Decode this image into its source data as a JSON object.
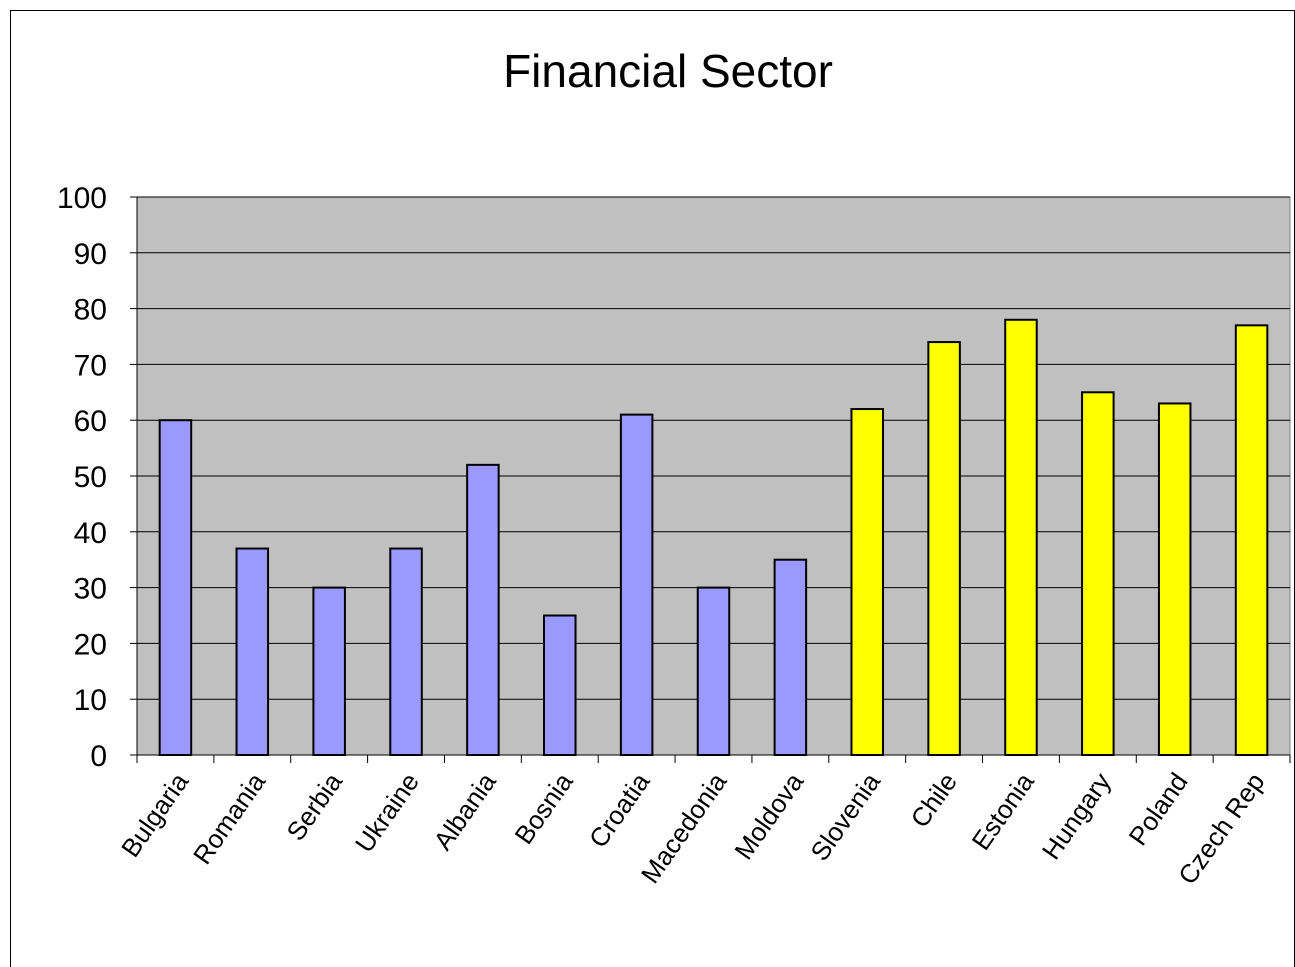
{
  "chart_data": {
    "type": "bar",
    "title": "Financial Sector",
    "xlabel": "",
    "ylabel": "",
    "ylim": [
      0,
      100
    ],
    "yticks": [
      0,
      10,
      20,
      30,
      40,
      50,
      60,
      70,
      80,
      90,
      100
    ],
    "grid": true,
    "legend": "none",
    "categories": [
      "Bulgaria",
      "Romania",
      "Serbia",
      "Ukraine",
      "Albania",
      "Bosnia",
      "Croatia",
      "Macedonia",
      "Moldova",
      "Slovenia",
      "Chile",
      "Estonia",
      "Hungary",
      "Poland",
      "Czech Rep"
    ],
    "values": [
      60,
      37,
      30,
      37,
      52,
      25,
      61,
      30,
      35,
      62,
      74,
      78,
      65,
      63,
      77
    ],
    "bar_colors": [
      "#9999ff",
      "#9999ff",
      "#9999ff",
      "#9999ff",
      "#9999ff",
      "#9999ff",
      "#9999ff",
      "#9999ff",
      "#9999ff",
      "#ffff00",
      "#ffff00",
      "#ffff00",
      "#ffff00",
      "#ffff00",
      "#ffff00"
    ],
    "plot_background": "#c0c0c0",
    "grid_color": "#000000"
  }
}
